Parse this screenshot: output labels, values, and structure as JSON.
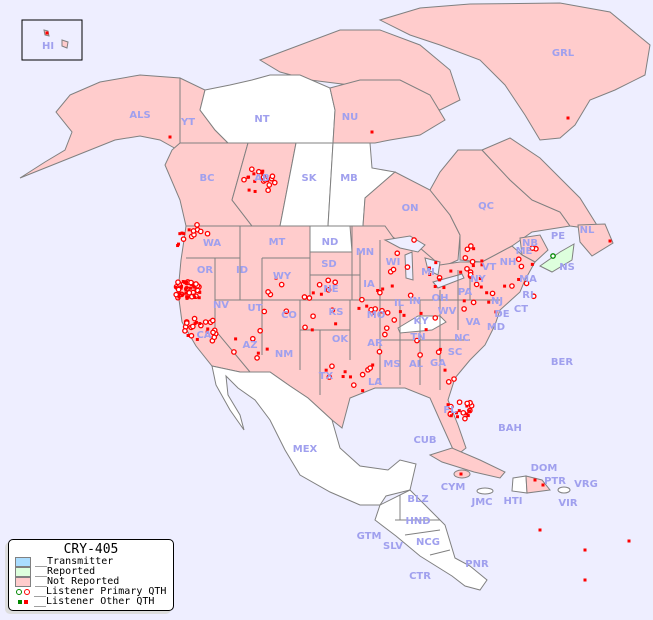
{
  "legend": {
    "title": "CRY-405",
    "items": [
      {
        "label": "__Transmitter",
        "color": "#aaddff"
      },
      {
        "label": "__Reported",
        "color": "#ddffdd"
      },
      {
        "label": "__Not Reported",
        "color": "#ffcccc"
      },
      {
        "label": "__Listener Primary QTH",
        "colors": [
          "#008800",
          "#ff0000"
        ]
      },
      {
        "label": "__Listener Other QTH",
        "colors": [
          "#008800",
          "#ff0000"
        ]
      }
    ]
  },
  "colors": {
    "ocean": "#eeeeff",
    "not_reported": "#ffcccc",
    "reported": "#ddffdd",
    "no_data": "#ffffff",
    "label": "#a0a0ee",
    "listener": "#ff0000"
  },
  "regions": [
    {
      "code": "HI",
      "status": "not-reported"
    },
    {
      "code": "ALS",
      "status": "not-reported"
    },
    {
      "code": "YT",
      "status": "not-reported"
    },
    {
      "code": "NT",
      "status": "none"
    },
    {
      "code": "NU",
      "status": "not-reported"
    },
    {
      "code": "GRL",
      "status": "not-reported"
    },
    {
      "code": "BC",
      "status": "not-reported"
    },
    {
      "code": "AB",
      "status": "not-reported"
    },
    {
      "code": "SK",
      "status": "none"
    },
    {
      "code": "MB",
      "status": "none"
    },
    {
      "code": "ON",
      "status": "not-reported"
    },
    {
      "code": "QC",
      "status": "not-reported"
    },
    {
      "code": "NL",
      "status": "not-reported"
    },
    {
      "code": "NB",
      "status": "not-reported"
    },
    {
      "code": "PE",
      "status": "not-reported"
    },
    {
      "code": "NS",
      "status": "reported"
    },
    {
      "code": "WA",
      "status": "not-reported"
    },
    {
      "code": "OR",
      "status": "not-reported"
    },
    {
      "code": "ID",
      "status": "not-reported"
    },
    {
      "code": "MT",
      "status": "not-reported"
    },
    {
      "code": "ND",
      "status": "none"
    },
    {
      "code": "SD",
      "status": "not-reported"
    },
    {
      "code": "MN",
      "status": "not-reported"
    },
    {
      "code": "WI",
      "status": "not-reported"
    },
    {
      "code": "MI",
      "status": "not-reported"
    },
    {
      "code": "NY",
      "status": "not-reported"
    },
    {
      "code": "VT",
      "status": "not-reported"
    },
    {
      "code": "NH",
      "status": "not-reported"
    },
    {
      "code": "ME",
      "status": "not-reported"
    },
    {
      "code": "MA",
      "status": "not-reported"
    },
    {
      "code": "RI",
      "status": "not-reported"
    },
    {
      "code": "CT",
      "status": "not-reported"
    },
    {
      "code": "NJ",
      "status": "not-reported"
    },
    {
      "code": "PA",
      "status": "not-reported"
    },
    {
      "code": "DE",
      "status": "not-reported"
    },
    {
      "code": "MD",
      "status": "not-reported"
    },
    {
      "code": "OH",
      "status": "not-reported"
    },
    {
      "code": "IN",
      "status": "not-reported"
    },
    {
      "code": "IL",
      "status": "not-reported"
    },
    {
      "code": "IA",
      "status": "not-reported"
    },
    {
      "code": "NE",
      "status": "not-reported"
    },
    {
      "code": "WY",
      "status": "not-reported"
    },
    {
      "code": "NV",
      "status": "not-reported"
    },
    {
      "code": "UT",
      "status": "not-reported"
    },
    {
      "code": "CO",
      "status": "not-reported"
    },
    {
      "code": "KS",
      "status": "not-reported"
    },
    {
      "code": "MO",
      "status": "not-reported"
    },
    {
      "code": "KY",
      "status": "none"
    },
    {
      "code": "WV",
      "status": "not-reported"
    },
    {
      "code": "VA",
      "status": "not-reported"
    },
    {
      "code": "CA",
      "status": "not-reported"
    },
    {
      "code": "AZ",
      "status": "not-reported"
    },
    {
      "code": "NM",
      "status": "not-reported"
    },
    {
      "code": "OK",
      "status": "not-reported"
    },
    {
      "code": "AR",
      "status": "not-reported"
    },
    {
      "code": "TN",
      "status": "not-reported"
    },
    {
      "code": "NC",
      "status": "not-reported"
    },
    {
      "code": "SC",
      "status": "not-reported"
    },
    {
      "code": "GA",
      "status": "not-reported"
    },
    {
      "code": "AL",
      "status": "not-reported"
    },
    {
      "code": "MS",
      "status": "not-reported"
    },
    {
      "code": "LA",
      "status": "not-reported"
    },
    {
      "code": "TX",
      "status": "not-reported"
    },
    {
      "code": "FL",
      "status": "not-reported"
    },
    {
      "code": "MEX",
      "status": "none"
    },
    {
      "code": "CUB",
      "status": "not-reported"
    },
    {
      "code": "BAH",
      "status": "none"
    },
    {
      "code": "BER",
      "status": "none"
    },
    {
      "code": "DOM",
      "status": "not-reported"
    },
    {
      "code": "PTR",
      "status": "none"
    },
    {
      "code": "VRG",
      "status": "none"
    },
    {
      "code": "VIR",
      "status": "none"
    },
    {
      "code": "HTI",
      "status": "none"
    },
    {
      "code": "JMC",
      "status": "none"
    },
    {
      "code": "CYM",
      "status": "not-reported"
    },
    {
      "code": "BLZ",
      "status": "none"
    },
    {
      "code": "HND",
      "status": "none"
    },
    {
      "code": "GTM",
      "status": "none"
    },
    {
      "code": "SLV",
      "status": "none"
    },
    {
      "code": "NCG",
      "status": "none"
    },
    {
      "code": "CTR",
      "status": "none"
    },
    {
      "code": "PNR",
      "status": "none"
    }
  ]
}
